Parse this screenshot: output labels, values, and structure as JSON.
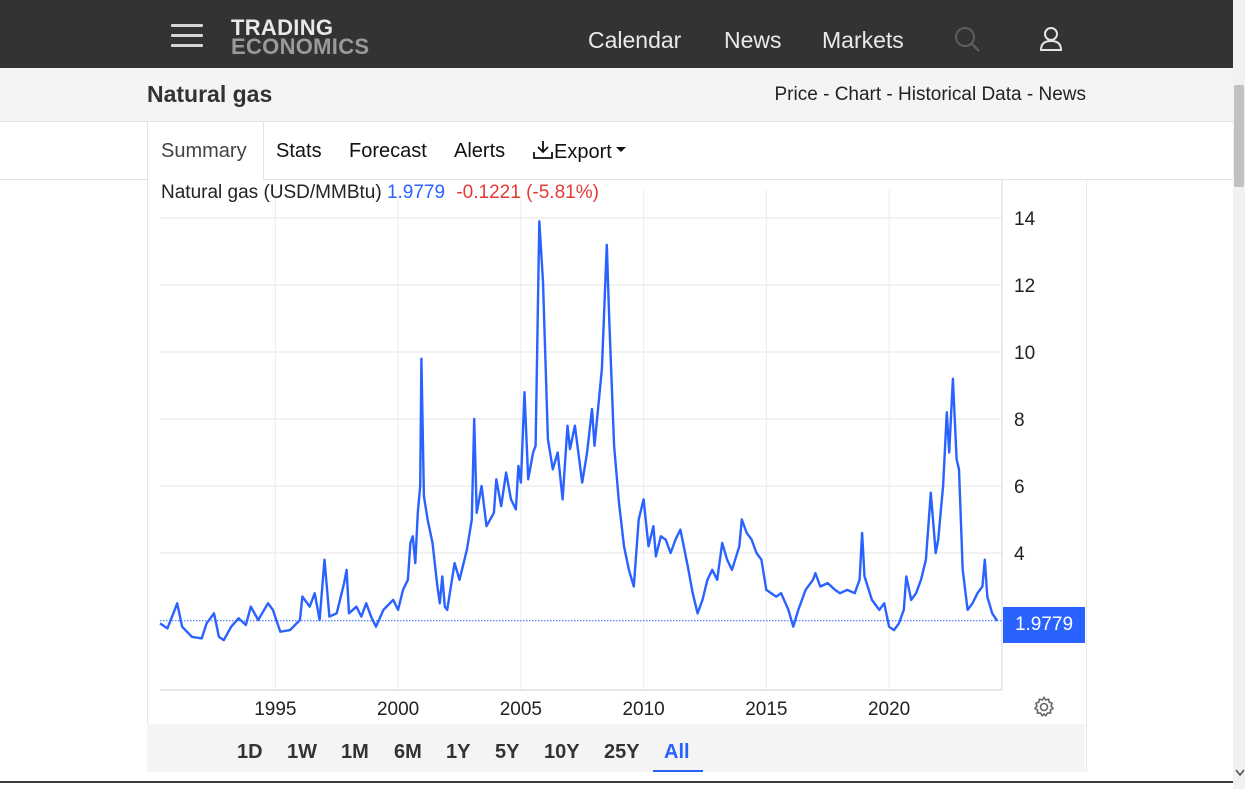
{
  "header": {
    "logo_line1": "TRADING",
    "logo_line2": "ECONOMICS",
    "nav": [
      "Calendar",
      "News",
      "Markets"
    ],
    "icons": [
      "menu-icon",
      "search-icon",
      "user-icon"
    ]
  },
  "title_bar": {
    "title": "Natural gas",
    "links": [
      "Price",
      "Chart",
      "Historical Data",
      "News"
    ],
    "separator": " - "
  },
  "tabs": [
    "Summary",
    "Stats",
    "Forecast",
    "Alerts",
    "Export"
  ],
  "active_tab": "Summary",
  "legend": {
    "name": "Natural gas (USD/MMBtu)",
    "value": "1.9779",
    "change": "-0.1221 (-5.81%)"
  },
  "price_badge": "1.9779",
  "ranges": [
    "1D",
    "1W",
    "1M",
    "6M",
    "1Y",
    "5Y",
    "10Y",
    "25Y",
    "All"
  ],
  "active_range": "All",
  "colors": {
    "line": "#2962ff",
    "negative": "#e53935",
    "header_bg": "#333333"
  },
  "chart_data": {
    "type": "line",
    "x_tick_labels": [
      "1995",
      "2000",
      "2005",
      "2010",
      "2015",
      "2020"
    ],
    "x_ticks": [
      1995,
      2000,
      2005,
      2010,
      2015,
      2020
    ],
    "y_tick_labels": [
      "4",
      "6",
      "8",
      "10",
      "12",
      "14"
    ],
    "y_ticks": [
      4,
      6,
      8,
      10,
      12,
      14
    ],
    "ylim": [
      0,
      15
    ],
    "xlim": [
      1990.3,
      2024.6
    ],
    "y_axis_position": "right",
    "grid": true,
    "current_value": 1.9779,
    "series": [
      {
        "values": [
          [
            1990.3,
            1.9
          ],
          [
            1990.6,
            1.75
          ],
          [
            1990.9,
            2.3
          ],
          [
            1991.0,
            2.5
          ],
          [
            1991.2,
            1.8
          ],
          [
            1991.6,
            1.5
          ],
          [
            1992.0,
            1.45
          ],
          [
            1992.2,
            1.9
          ],
          [
            1992.5,
            2.2
          ],
          [
            1992.7,
            1.5
          ],
          [
            1992.9,
            1.4
          ],
          [
            1993.2,
            1.8
          ],
          [
            1993.5,
            2.05
          ],
          [
            1993.8,
            1.85
          ],
          [
            1994.0,
            2.4
          ],
          [
            1994.3,
            2.0
          ],
          [
            1994.7,
            2.5
          ],
          [
            1994.9,
            2.3
          ],
          [
            1995.2,
            1.65
          ],
          [
            1995.6,
            1.7
          ],
          [
            1996.0,
            2.0
          ],
          [
            1996.1,
            2.7
          ],
          [
            1996.4,
            2.4
          ],
          [
            1996.6,
            2.8
          ],
          [
            1996.8,
            2.0
          ],
          [
            1997.0,
            3.8
          ],
          [
            1997.2,
            2.1
          ],
          [
            1997.5,
            2.2
          ],
          [
            1997.8,
            3.1
          ],
          [
            1997.9,
            3.5
          ],
          [
            1998.0,
            2.2
          ],
          [
            1998.3,
            2.4
          ],
          [
            1998.5,
            2.1
          ],
          [
            1998.7,
            2.5
          ],
          [
            1998.9,
            2.1
          ],
          [
            1999.1,
            1.8
          ],
          [
            1999.4,
            2.3
          ],
          [
            1999.8,
            2.6
          ],
          [
            2000.0,
            2.3
          ],
          [
            2000.2,
            2.9
          ],
          [
            2000.4,
            3.2
          ],
          [
            2000.5,
            4.3
          ],
          [
            2000.6,
            4.5
          ],
          [
            2000.7,
            3.7
          ],
          [
            2000.8,
            5.2
          ],
          [
            2000.9,
            6.0
          ],
          [
            2000.95,
            9.8
          ],
          [
            2001.05,
            5.7
          ],
          [
            2001.2,
            5.0
          ],
          [
            2001.4,
            4.3
          ],
          [
            2001.6,
            3.0
          ],
          [
            2001.7,
            2.5
          ],
          [
            2001.8,
            3.3
          ],
          [
            2001.9,
            2.4
          ],
          [
            2002.0,
            2.3
          ],
          [
            2002.3,
            3.7
          ],
          [
            2002.5,
            3.2
          ],
          [
            2002.8,
            4.1
          ],
          [
            2003.0,
            5.0
          ],
          [
            2003.1,
            8.0
          ],
          [
            2003.2,
            5.2
          ],
          [
            2003.4,
            6.0
          ],
          [
            2003.6,
            4.8
          ],
          [
            2003.9,
            5.2
          ],
          [
            2004.0,
            6.2
          ],
          [
            2004.2,
            5.4
          ],
          [
            2004.4,
            6.4
          ],
          [
            2004.6,
            5.6
          ],
          [
            2004.8,
            5.3
          ],
          [
            2004.9,
            6.6
          ],
          [
            2005.0,
            6.1
          ],
          [
            2005.15,
            8.8
          ],
          [
            2005.3,
            6.2
          ],
          [
            2005.5,
            7.0
          ],
          [
            2005.6,
            7.2
          ],
          [
            2005.75,
            13.9
          ],
          [
            2005.9,
            12.1
          ],
          [
            2006.1,
            7.4
          ],
          [
            2006.3,
            6.5
          ],
          [
            2006.5,
            7.0
          ],
          [
            2006.7,
            5.6
          ],
          [
            2006.9,
            7.8
          ],
          [
            2007.0,
            7.1
          ],
          [
            2007.2,
            7.8
          ],
          [
            2007.5,
            6.1
          ],
          [
            2007.7,
            7.0
          ],
          [
            2007.9,
            8.3
          ],
          [
            2008.0,
            7.2
          ],
          [
            2008.3,
            9.5
          ],
          [
            2008.5,
            13.2
          ],
          [
            2008.6,
            11.0
          ],
          [
            2008.8,
            7.2
          ],
          [
            2009.0,
            5.5
          ],
          [
            2009.2,
            4.2
          ],
          [
            2009.4,
            3.5
          ],
          [
            2009.6,
            3.0
          ],
          [
            2009.8,
            5.0
          ],
          [
            2010.0,
            5.6
          ],
          [
            2010.2,
            4.2
          ],
          [
            2010.4,
            4.8
          ],
          [
            2010.5,
            3.9
          ],
          [
            2010.7,
            4.5
          ],
          [
            2010.9,
            4.4
          ],
          [
            2011.1,
            4.0
          ],
          [
            2011.3,
            4.4
          ],
          [
            2011.5,
            4.7
          ],
          [
            2011.8,
            3.6
          ],
          [
            2012.0,
            2.8
          ],
          [
            2012.2,
            2.2
          ],
          [
            2012.4,
            2.6
          ],
          [
            2012.6,
            3.2
          ],
          [
            2012.8,
            3.5
          ],
          [
            2013.0,
            3.2
          ],
          [
            2013.2,
            4.3
          ],
          [
            2013.4,
            3.8
          ],
          [
            2013.6,
            3.5
          ],
          [
            2013.9,
            4.2
          ],
          [
            2014.0,
            5.0
          ],
          [
            2014.2,
            4.6
          ],
          [
            2014.4,
            4.4
          ],
          [
            2014.6,
            4.0
          ],
          [
            2014.8,
            3.8
          ],
          [
            2015.0,
            2.9
          ],
          [
            2015.4,
            2.7
          ],
          [
            2015.6,
            2.8
          ],
          [
            2015.9,
            2.3
          ],
          [
            2016.1,
            1.8
          ],
          [
            2016.3,
            2.3
          ],
          [
            2016.6,
            2.9
          ],
          [
            2016.9,
            3.2
          ],
          [
            2017.0,
            3.4
          ],
          [
            2017.2,
            3.0
          ],
          [
            2017.5,
            3.1
          ],
          [
            2017.8,
            2.9
          ],
          [
            2018.0,
            2.8
          ],
          [
            2018.3,
            2.9
          ],
          [
            2018.6,
            2.8
          ],
          [
            2018.8,
            3.2
          ],
          [
            2018.9,
            4.6
          ],
          [
            2019.0,
            3.3
          ],
          [
            2019.3,
            2.6
          ],
          [
            2019.6,
            2.3
          ],
          [
            2019.8,
            2.5
          ],
          [
            2020.0,
            1.8
          ],
          [
            2020.2,
            1.7
          ],
          [
            2020.4,
            1.9
          ],
          [
            2020.6,
            2.3
          ],
          [
            2020.7,
            3.3
          ],
          [
            2020.9,
            2.6
          ],
          [
            2021.1,
            2.8
          ],
          [
            2021.3,
            3.2
          ],
          [
            2021.5,
            3.8
          ],
          [
            2021.7,
            5.8
          ],
          [
            2021.9,
            4.0
          ],
          [
            2022.0,
            4.4
          ],
          [
            2022.2,
            6.0
          ],
          [
            2022.35,
            8.2
          ],
          [
            2022.45,
            7.0
          ],
          [
            2022.6,
            9.2
          ],
          [
            2022.75,
            6.8
          ],
          [
            2022.85,
            6.5
          ],
          [
            2023.0,
            3.5
          ],
          [
            2023.2,
            2.3
          ],
          [
            2023.4,
            2.5
          ],
          [
            2023.6,
            2.8
          ],
          [
            2023.8,
            3.0
          ],
          [
            2023.9,
            3.8
          ],
          [
            2024.0,
            2.7
          ],
          [
            2024.2,
            2.2
          ],
          [
            2024.4,
            1.98
          ]
        ]
      }
    ]
  }
}
